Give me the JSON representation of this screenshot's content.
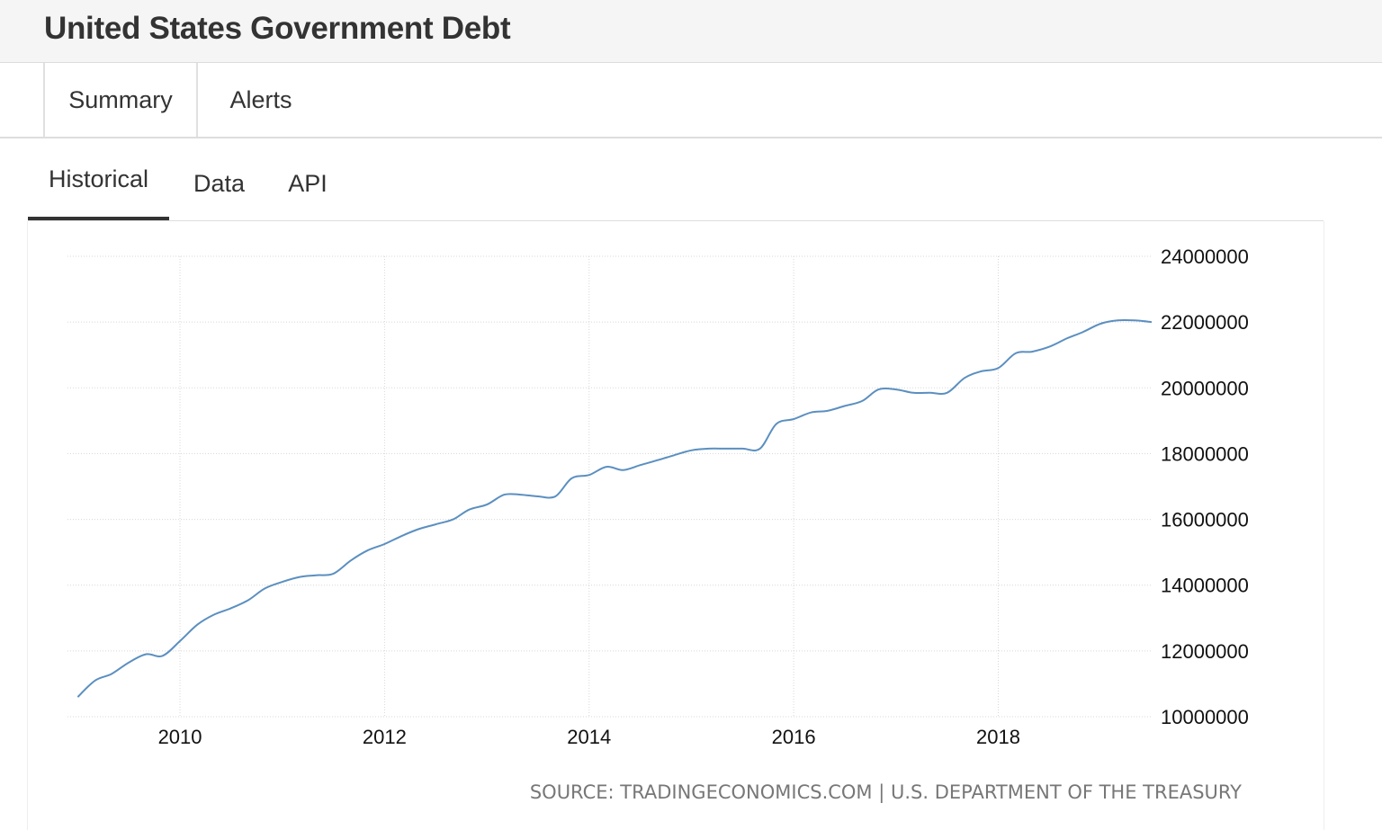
{
  "header": {
    "title": "United States Government Debt"
  },
  "nav": {
    "tabs": [
      {
        "label": "Summary"
      },
      {
        "label": "Alerts"
      }
    ]
  },
  "subtabs": [
    {
      "label": "Historical",
      "active": true
    },
    {
      "label": "Data",
      "active": false
    },
    {
      "label": "API",
      "active": false
    }
  ],
  "colors": {
    "line": "#5b8fc0",
    "grid": "#d8d8d8",
    "active_tab_underline": "#333333"
  },
  "chart_data": {
    "type": "line",
    "title": "",
    "xlabel": "",
    "ylabel": "",
    "xlim": [
      2008.9,
      2019.5
    ],
    "ylim": [
      10000000,
      24000000
    ],
    "x_ticks": [
      "2010",
      "2012",
      "2014",
      "2016",
      "2018"
    ],
    "y_ticks": [
      "24000000",
      "22000000",
      "20000000",
      "18000000",
      "16000000",
      "14000000",
      "12000000",
      "10000000"
    ],
    "y_axis_position": "right",
    "grid": true,
    "legend": "none",
    "source": "SOURCE: TRADINGECONOMICS.COM | U.S. DEPARTMENT OF THE TREASURY",
    "series": [
      {
        "x": [
          2009.0,
          2009.17,
          2009.33,
          2009.5,
          2009.67,
          2009.83,
          2010.0,
          2010.17,
          2010.33,
          2010.5,
          2010.67,
          2010.83,
          2011.0,
          2011.17,
          2011.33,
          2011.5,
          2011.67,
          2011.83,
          2012.0,
          2012.17,
          2012.33,
          2012.5,
          2012.67,
          2012.83,
          2013.0,
          2013.17,
          2013.33,
          2013.5,
          2013.67,
          2013.83,
          2014.0,
          2014.17,
          2014.33,
          2014.5,
          2014.67,
          2014.83,
          2015.0,
          2015.17,
          2015.33,
          2015.5,
          2015.67,
          2015.83,
          2016.0,
          2016.17,
          2016.33,
          2016.5,
          2016.67,
          2016.83,
          2017.0,
          2017.17,
          2017.33,
          2017.5,
          2017.67,
          2017.83,
          2018.0,
          2018.17,
          2018.33,
          2018.5,
          2018.67,
          2018.83,
          2019.0,
          2019.17,
          2019.33,
          2019.5
        ],
        "values": [
          10600000,
          11100000,
          11300000,
          11650000,
          11900000,
          11850000,
          12300000,
          12800000,
          13100000,
          13300000,
          13550000,
          13900000,
          14100000,
          14250000,
          14300000,
          14350000,
          14750000,
          15050000,
          15250000,
          15500000,
          15700000,
          15850000,
          16000000,
          16300000,
          16450000,
          16750000,
          16750000,
          16700000,
          16700000,
          17250000,
          17350000,
          17600000,
          17500000,
          17650000,
          17800000,
          17950000,
          18100000,
          18150000,
          18150000,
          18150000,
          18150000,
          18900000,
          19050000,
          19250000,
          19300000,
          19450000,
          19600000,
          19950000,
          19950000,
          19850000,
          19850000,
          19850000,
          20300000,
          20500000,
          20600000,
          21050000,
          21100000,
          21250000,
          21500000,
          21700000,
          21950000,
          22050000,
          22050000,
          22000000
        ]
      }
    ]
  }
}
